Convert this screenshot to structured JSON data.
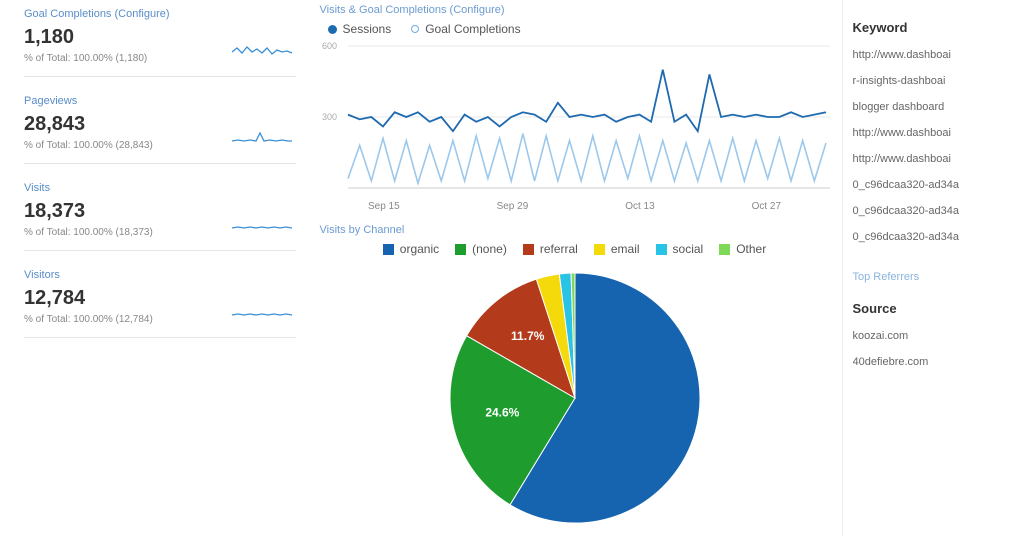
{
  "left": {
    "metrics": [
      {
        "title": "Goal Completions (Configure)",
        "value": "1,180",
        "sub": "% of Total: 100.00% (1,180)"
      },
      {
        "title": "Pageviews",
        "value": "28,843",
        "sub": "% of Total: 100.00% (28,843)"
      },
      {
        "title": "Visits",
        "value": "18,373",
        "sub": "% of Total: 100.00% (18,373)"
      },
      {
        "title": "Visitors",
        "value": "12,784",
        "sub": "% of Total: 100.00% (12,784)"
      }
    ],
    "spark_color": "#3a8fd6"
  },
  "line_chart": {
    "title": "Visits & Goal Completions (Configure)",
    "legend": [
      {
        "label": "Sessions",
        "color": "#1e6ab0",
        "style": "filled"
      },
      {
        "label": "Goal Completions",
        "color": "#6aaee8",
        "style": "hollow"
      }
    ],
    "y_labels": [
      "600",
      "300"
    ],
    "y_label_fontsize": 9,
    "y_label_color": "#aaaaaa",
    "background": "#ffffff",
    "grid_color": "#e8e8e8",
    "axis_color": "#cccccc",
    "series": [
      {
        "name": "Sessions",
        "color": "#1e6ab0",
        "stroke_width": 1.8,
        "values": [
          310,
          290,
          300,
          260,
          320,
          300,
          320,
          280,
          300,
          240,
          310,
          280,
          300,
          260,
          300,
          320,
          310,
          280,
          360,
          300,
          310,
          300,
          310,
          280,
          300,
          310,
          280,
          500,
          280,
          310,
          240,
          480,
          300,
          310,
          300,
          310,
          300,
          300,
          320,
          300,
          310,
          320
        ]
      },
      {
        "name": "Goal Completions",
        "color": "#9cc8ec",
        "stroke_width": 1.6,
        "values": [
          40,
          180,
          30,
          210,
          30,
          200,
          20,
          180,
          30,
          200,
          30,
          220,
          40,
          210,
          30,
          230,
          30,
          220,
          30,
          200,
          30,
          220,
          30,
          200,
          40,
          220,
          30,
          200,
          30,
          190,
          30,
          200,
          30,
          210,
          30,
          200,
          40,
          210,
          30,
          200,
          30,
          190
        ]
      }
    ],
    "x_labels": [
      "Sep 15",
      "Sep 29",
      "Oct 13",
      "Oct 27"
    ],
    "x_label_color": "#888888",
    "x_label_fontsize": 10,
    "ylim": [
      0,
      600
    ]
  },
  "pie_chart": {
    "title": "Visits by Channel",
    "type": "pie",
    "legend": [
      {
        "label": "organic",
        "color": "#1663b0"
      },
      {
        "label": "(none)",
        "color": "#1f9c2e"
      },
      {
        "label": "referral",
        "color": "#b33a1a"
      },
      {
        "label": "email",
        "color": "#f4d90b"
      },
      {
        "label": "social",
        "color": "#29c3e5"
      },
      {
        "label": "Other",
        "color": "#7ed957"
      }
    ],
    "slices": [
      {
        "name": "organic",
        "pct": 58.7,
        "color": "#1663b0"
      },
      {
        "name": "(none)",
        "pct": 24.6,
        "color": "#1f9c2e"
      },
      {
        "name": "referral",
        "pct": 11.7,
        "color": "#b33a1a"
      },
      {
        "name": "email",
        "pct": 3.0,
        "color": "#f4d90b"
      },
      {
        "name": "social",
        "pct": 1.5,
        "color": "#29c3e5"
      },
      {
        "name": "Other",
        "pct": 0.5,
        "color": "#7ed957"
      }
    ],
    "visible_labels": [
      {
        "text": "11.7%",
        "slice": "referral"
      },
      {
        "text": "24.6%",
        "slice": "(none)"
      }
    ],
    "radius": 125
  },
  "right": {
    "heading_keyword": "Keyword",
    "keywords": [
      "http://www.dashboai",
      "r-insights-dashboai",
      "blogger dashboard",
      "http://www.dashboai",
      "http://www.dashboai",
      "0_c96dcaa320-ad34a",
      "0_c96dcaa320-ad34a",
      "0_c96dcaa320-ad34a"
    ],
    "sub_heading": "Top Referrers",
    "heading_source": "Source",
    "sources": [
      "koozai.com",
      "40defiebre.com"
    ]
  }
}
